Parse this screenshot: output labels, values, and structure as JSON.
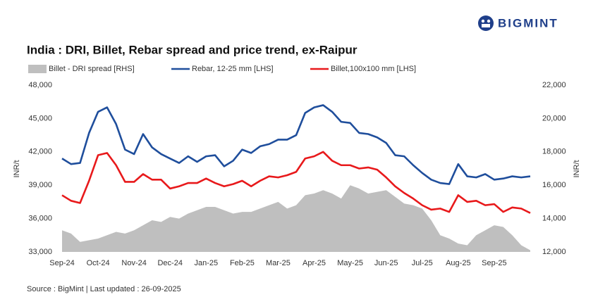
{
  "brand": "BIGMINT",
  "chart_data": {
    "type": "line",
    "title": "India : DRI, Billet, Rebar spread and price trend, ex-Raipur",
    "source": "Source : BigMint | Last updated : 26-09-2025",
    "ylabel": "INR/t",
    "y2label": "INR/t",
    "categories": [
      "Sep-24",
      null,
      null,
      null,
      "Oct-24",
      null,
      null,
      null,
      "Nov-24",
      null,
      null,
      null,
      "Dec-24",
      null,
      null,
      null,
      "Jan-25",
      null,
      null,
      null,
      "Feb-25",
      null,
      null,
      null,
      "Mar-25",
      null,
      null,
      null,
      "Apr-25",
      null,
      null,
      null,
      "May-25",
      null,
      null,
      null,
      "Jun-25",
      null,
      null,
      null,
      "Jul-25",
      null,
      null,
      null,
      "Aug-25",
      null,
      null,
      null,
      "Sep-25",
      null,
      null,
      null,
      null
    ],
    "series": [
      {
        "name": "Billet - DRI spread  [RHS]",
        "color": "#bfbfbf",
        "axis": "y2",
        "style": "area",
        "values": [
          13300,
          13100,
          12600,
          12700,
          12800,
          13000,
          13200,
          13100,
          13300,
          13600,
          13900,
          13800,
          14100,
          14000,
          14300,
          14500,
          14700,
          14700,
          14500,
          14300,
          14400,
          14400,
          14600,
          14800,
          15000,
          14600,
          14800,
          15400,
          15500,
          15700,
          15500,
          15200,
          16000,
          15800,
          15500,
          15600,
          15700,
          15300,
          14900,
          14800,
          14600,
          13900,
          13000,
          12800,
          12500,
          12400,
          13000,
          13300,
          13600,
          13500,
          13000,
          12400,
          12100
        ]
      },
      {
        "name": "Rebar, 12-25 mm [LHS]",
        "color": "#1f4e9c",
        "style": "line",
        "values": [
          41400,
          40900,
          41000,
          43700,
          45600,
          46000,
          44500,
          42200,
          41800,
          43600,
          42400,
          41800,
          41400,
          41000,
          41600,
          41100,
          41600,
          41700,
          40700,
          41200,
          42200,
          41900,
          42500,
          42700,
          43100,
          43100,
          43500,
          45500,
          46000,
          46200,
          45600,
          44700,
          44600,
          43700,
          43600,
          43300,
          42800,
          41700,
          41600,
          40800,
          40100,
          39500,
          39200,
          39100,
          40900,
          39800,
          39700,
          40000,
          39500,
          39600,
          39800,
          39700,
          39800
        ]
      },
      {
        "name": "Billet,100x100 mm [LHS]",
        "color": "#e8191b",
        "style": "line",
        "values": [
          38100,
          37600,
          37400,
          39400,
          41700,
          41900,
          40800,
          39300,
          39300,
          40000,
          39500,
          39500,
          38700,
          38900,
          39200,
          39200,
          39600,
          39200,
          38900,
          39100,
          39400,
          38900,
          39400,
          39800,
          39700,
          39900,
          40200,
          41400,
          41600,
          42000,
          41200,
          40800,
          40800,
          40500,
          40600,
          40400,
          39700,
          38900,
          38300,
          37800,
          37200,
          36800,
          36900,
          36600,
          38100,
          37500,
          37600,
          37200,
          37300,
          36600,
          37000,
          36900,
          36500
        ]
      }
    ],
    "ylim": [
      33000,
      48000
    ],
    "yticks": [
      {
        "value": 33000,
        "label": "33,000"
      },
      {
        "value": 36000,
        "label": "36,000"
      },
      {
        "value": 39000,
        "label": "39,000"
      },
      {
        "value": 42000,
        "label": "42,000"
      },
      {
        "value": 45000,
        "label": "45,000"
      },
      {
        "value": 48000,
        "label": "48,000"
      }
    ],
    "y2lim": [
      12000,
      22000
    ],
    "y2ticks": [
      {
        "value": 12000,
        "label": "12,000"
      },
      {
        "value": 14000,
        "label": "14,000"
      },
      {
        "value": 16000,
        "label": "16,000"
      },
      {
        "value": 18000,
        "label": "18,000"
      },
      {
        "value": 20000,
        "label": "20,000"
      },
      {
        "value": 22000,
        "label": "22,000"
      }
    ],
    "grid": false
  }
}
